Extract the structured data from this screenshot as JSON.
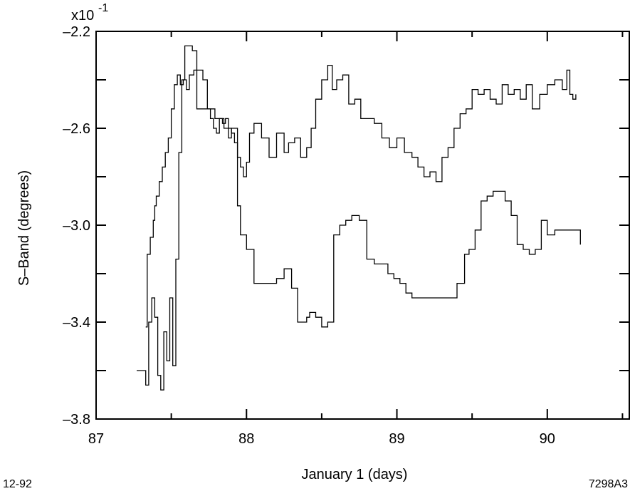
{
  "chart_data": {
    "type": "line",
    "scale_note": "x10",
    "scale_exp": "-1",
    "xlabel": "January 1    (days)",
    "ylabel": "S–Band    (degrees)",
    "xlim": [
      87.0,
      90.55
    ],
    "ylim": [
      -3.8,
      -2.2
    ],
    "x_ticks": [
      87,
      88,
      89,
      90
    ],
    "x_tick_labels": [
      "87",
      "88",
      "89",
      "90"
    ],
    "y_ticks": [
      -2.2,
      -2.6,
      -3.0,
      -3.4,
      -3.8
    ],
    "y_tick_labels": [
      "–2.2",
      "–2.6",
      "–3.0",
      "–3.4",
      "–3.8"
    ],
    "y_minor_ticks": [
      -2.4,
      -2.8,
      -3.2,
      -3.6
    ],
    "x_minor_ticks": [
      87.5,
      88.5,
      89.5,
      90.5
    ],
    "grid": false,
    "legend": "none",
    "line_color": "#000000",
    "series": [
      {
        "x": [
          87.33,
          87.34,
          87.36,
          87.38,
          87.39,
          87.4,
          87.42,
          87.44,
          87.46,
          87.48,
          87.5,
          87.52,
          87.54,
          87.56,
          87.58,
          87.6,
          87.62,
          87.65,
          87.68,
          87.71,
          87.74,
          87.76,
          87.78,
          87.8,
          87.82,
          87.84,
          87.86,
          87.88,
          87.9,
          87.92,
          87.94,
          87.96,
          87.98,
          88.0,
          88.02,
          88.05,
          88.1,
          88.15,
          88.2,
          88.25,
          88.28,
          88.32,
          88.36,
          88.4,
          88.43,
          88.46,
          88.5,
          88.54,
          88.57,
          88.6,
          88.64,
          88.68,
          88.72,
          88.76,
          88.8,
          88.85,
          88.9,
          88.95,
          89.0,
          89.05,
          89.1,
          89.14,
          89.18,
          89.22,
          89.26,
          89.3,
          89.34,
          89.38,
          89.42,
          89.46,
          89.5,
          89.54,
          89.58,
          89.62,
          89.66,
          89.7,
          89.74,
          89.78,
          89.82,
          89.86,
          89.9,
          89.95,
          90.0,
          90.05,
          90.1,
          90.13,
          90.15,
          90.17,
          90.19
        ],
        "y": [
          -3.42,
          -3.12,
          -3.05,
          -2.98,
          -2.92,
          -2.88,
          -2.82,
          -2.76,
          -2.7,
          -2.64,
          -2.52,
          -2.42,
          -2.38,
          -2.42,
          -2.4,
          -2.44,
          -2.38,
          -2.36,
          -2.36,
          -2.4,
          -2.52,
          -2.56,
          -2.6,
          -2.62,
          -2.56,
          -2.58,
          -2.56,
          -2.6,
          -2.62,
          -2.66,
          -2.72,
          -2.76,
          -2.8,
          -2.74,
          -2.62,
          -2.58,
          -2.64,
          -2.72,
          -2.62,
          -2.7,
          -2.66,
          -2.64,
          -2.72,
          -2.68,
          -2.6,
          -2.48,
          -2.4,
          -2.34,
          -2.44,
          -2.4,
          -2.38,
          -2.5,
          -2.48,
          -2.56,
          -2.56,
          -2.58,
          -2.64,
          -2.68,
          -2.64,
          -2.7,
          -2.72,
          -2.76,
          -2.8,
          -2.78,
          -2.82,
          -2.72,
          -2.68,
          -2.6,
          -2.54,
          -2.52,
          -2.44,
          -2.46,
          -2.44,
          -2.48,
          -2.5,
          -2.42,
          -2.46,
          -2.44,
          -2.48,
          -2.42,
          -2.52,
          -2.46,
          -2.42,
          -2.4,
          -2.44,
          -2.36,
          -2.46,
          -2.48,
          -2.46
        ]
      },
      {
        "x": [
          87.27,
          87.3,
          87.33,
          87.35,
          87.37,
          87.39,
          87.41,
          87.43,
          87.45,
          87.47,
          87.49,
          87.51,
          87.53,
          87.55,
          87.57,
          87.59,
          87.61,
          87.64,
          87.67,
          87.7,
          87.73,
          87.76,
          87.79,
          87.82,
          87.85,
          87.88,
          87.9,
          87.92,
          87.94,
          87.96,
          88.0,
          88.05,
          88.1,
          88.15,
          88.2,
          88.25,
          88.3,
          88.34,
          88.38,
          88.4,
          88.42,
          88.46,
          88.5,
          88.54,
          88.58,
          88.62,
          88.66,
          88.7,
          88.75,
          88.8,
          88.85,
          88.9,
          88.94,
          88.98,
          89.02,
          89.06,
          89.1,
          89.15,
          89.2,
          89.25,
          89.3,
          89.35,
          89.4,
          89.45,
          89.48,
          89.52,
          89.56,
          89.6,
          89.64,
          89.68,
          89.72,
          89.76,
          89.8,
          89.84,
          89.88,
          89.92,
          89.96,
          90.0,
          90.05,
          90.1,
          90.15,
          90.2,
          90.22
        ],
        "y": [
          -3.6,
          -3.6,
          -3.66,
          -3.4,
          -3.3,
          -3.38,
          -3.62,
          -3.68,
          -3.44,
          -3.56,
          -3.3,
          -3.58,
          -3.14,
          -2.7,
          -2.4,
          -2.26,
          -2.26,
          -2.28,
          -2.52,
          -2.52,
          -2.52,
          -2.52,
          -2.56,
          -2.56,
          -2.6,
          -2.64,
          -2.6,
          -2.6,
          -2.92,
          -3.04,
          -3.1,
          -3.24,
          -3.24,
          -3.24,
          -3.22,
          -3.18,
          -3.26,
          -3.4,
          -3.4,
          -3.38,
          -3.36,
          -3.38,
          -3.42,
          -3.4,
          -3.04,
          -3.0,
          -2.98,
          -2.96,
          -2.98,
          -3.14,
          -3.16,
          -3.16,
          -3.2,
          -3.22,
          -3.24,
          -3.28,
          -3.3,
          -3.3,
          -3.3,
          -3.3,
          -3.3,
          -3.3,
          -3.24,
          -3.12,
          -3.1,
          -3.02,
          -2.9,
          -2.88,
          -2.86,
          -2.86,
          -2.9,
          -2.96,
          -3.08,
          -3.1,
          -3.12,
          -3.1,
          -2.98,
          -3.04,
          -3.02,
          -3.02,
          -3.02,
          -3.02,
          -3.08
        ]
      }
    ]
  },
  "footer": {
    "left_note": "12-92",
    "right_note": "7298A3"
  }
}
